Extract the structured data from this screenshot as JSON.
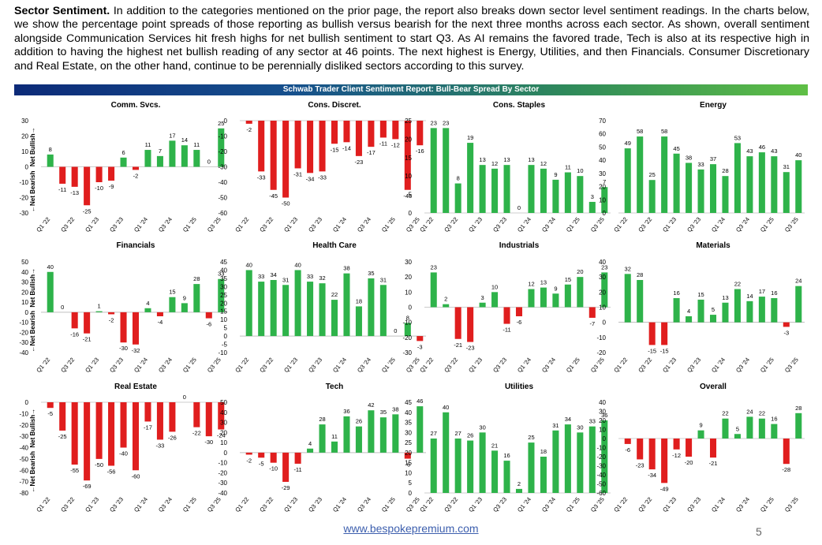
{
  "intro": {
    "heading": "Sector Sentiment.",
    "body": " In addition to the categories mentioned on the prior page, the report also breaks down sector level sentiment readings. In the charts below, we show the percentage point spreads of those reporting as bullish versus bearish for the next three months across each sector.  As shown, overall sentiment alongside Communication Services hit fresh highs for net bullish sentiment to start Q3.  As AI remains the favored trade, Tech is also at its respective high in addition to having the highest net bullish reading of any sector at 46 points. The next highest is Energy, Utilities, and then Financials. Consumer Discretionary and Real Estate, on the other hand, continue to be perennially disliked sectors according to this survey."
  },
  "banner_title": "Schwab Trader Client Sentiment Report: Bull-Bear Spread By Sector",
  "y_axis": {
    "top_label": "Net Bullish→",
    "bottom_label": "←Net Bearish"
  },
  "x_tick_labels": [
    "Q1 '22",
    "Q3 '22",
    "Q1 '23",
    "Q3 '23",
    "Q1 '24",
    "Q3 '24",
    "Q1 '25",
    "Q3 '25"
  ],
  "colors": {
    "positive": "#2eb34a",
    "negative": "#e01e1e"
  },
  "footer": {
    "url": "www.bespokepremium.com",
    "page": "5"
  },
  "chart_data": [
    {
      "type": "bar",
      "title": "Comm. Svcs.",
      "categories": [
        "Q1 '22",
        "Q2 '22",
        "Q3 '22",
        "Q4 '22",
        "Q1 '23",
        "Q2 '23",
        "Q3 '23",
        "Q4 '23",
        "Q1 '24",
        "Q2 '24",
        "Q3 '24",
        "Q4 '24",
        "Q1 '25",
        "Q2 '25",
        "Q3 '25"
      ],
      "values": [
        8,
        -11,
        -13,
        -25,
        -10,
        -9,
        6,
        -2,
        11,
        7,
        17,
        14,
        11,
        0,
        25
      ],
      "ylim": [
        -30,
        30
      ],
      "yticks": [
        30,
        20,
        10,
        0,
        -10,
        -20,
        -30
      ]
    },
    {
      "type": "bar",
      "title": "Cons. Discret.",
      "categories": [
        "Q1 '22",
        "Q2 '22",
        "Q3 '22",
        "Q4 '22",
        "Q1 '23",
        "Q2 '23",
        "Q3 '23",
        "Q4 '23",
        "Q1 '24",
        "Q2 '24",
        "Q3 '24",
        "Q4 '24",
        "Q1 '25",
        "Q2 '25",
        "Q3 '25"
      ],
      "values": [
        -2,
        -33,
        -45,
        -50,
        -31,
        -34,
        -33,
        -15,
        -14,
        -23,
        -17,
        -11,
        -12,
        -45,
        -16
      ],
      "ylim": [
        -60,
        0
      ],
      "yticks": [
        0,
        -10,
        -20,
        -30,
        -40,
        -50,
        -60
      ]
    },
    {
      "type": "bar",
      "title": "Cons. Staples",
      "categories": [
        "Q1 '22",
        "Q2 '22",
        "Q3 '22",
        "Q4 '22",
        "Q1 '23",
        "Q2 '23",
        "Q3 '23",
        "Q4 '23",
        "Q1 '24",
        "Q2 '24",
        "Q3 '24",
        "Q4 '24",
        "Q1 '25",
        "Q2 '25",
        "Q3 '25"
      ],
      "values": [
        23,
        23,
        8,
        19,
        13,
        12,
        13,
        0,
        13,
        12,
        9,
        11,
        10,
        3,
        7
      ],
      "ylim": [
        0,
        25
      ],
      "yticks": [
        25,
        20,
        15,
        10,
        5,
        0
      ]
    },
    {
      "type": "bar",
      "title": "Energy",
      "categories": [
        "Q1 '22",
        "Q2 '22",
        "Q3 '22",
        "Q4 '22",
        "Q1 '23",
        "Q2 '23",
        "Q3 '23",
        "Q4 '23",
        "Q1 '24",
        "Q2 '24",
        "Q3 '24",
        "Q4 '24",
        "Q1 '25",
        "Q2 '25",
        "Q3 '25"
      ],
      "values": [
        49,
        58,
        25,
        58,
        45,
        38,
        33,
        37,
        28,
        53,
        43,
        46,
        43,
        31,
        40
      ],
      "ylim": [
        0,
        70
      ],
      "yticks": [
        70,
        60,
        50,
        40,
        30,
        20,
        10,
        0
      ]
    },
    {
      "type": "bar",
      "title": "Financials",
      "categories": [
        "Q1 '22",
        "Q2 '22",
        "Q3 '22",
        "Q4 '22",
        "Q1 '23",
        "Q2 '23",
        "Q3 '23",
        "Q4 '23",
        "Q1 '24",
        "Q2 '24",
        "Q3 '24",
        "Q4 '24",
        "Q1 '25",
        "Q2 '25",
        "Q3 '25"
      ],
      "values": [
        40,
        0,
        -16,
        -21,
        1,
        -2,
        -30,
        -32,
        4,
        -4,
        15,
        9,
        28,
        -6,
        33
      ],
      "ylim": [
        -40,
        50
      ],
      "yticks": [
        50,
        40,
        30,
        20,
        10,
        0,
        -10,
        -20,
        -30,
        -40
      ]
    },
    {
      "type": "bar",
      "title": "Health Care",
      "categories": [
        "Q1 '22",
        "Q2 '22",
        "Q3 '22",
        "Q4 '22",
        "Q1 '23",
        "Q2 '23",
        "Q3 '23",
        "Q4 '23",
        "Q1 '24",
        "Q2 '24",
        "Q3 '24",
        "Q4 '24",
        "Q1 '25",
        "Q2 '25",
        "Q3 '25"
      ],
      "values": [
        40,
        33,
        34,
        31,
        40,
        33,
        32,
        22,
        38,
        18,
        35,
        31,
        0,
        8,
        -3
      ],
      "ylim": [
        -10,
        45
      ],
      "yticks": [
        45,
        40,
        35,
        30,
        25,
        20,
        15,
        10,
        5,
        0,
        -5,
        -10
      ]
    },
    {
      "type": "bar",
      "title": "Industrials",
      "categories": [
        "Q1 '22",
        "Q2 '22",
        "Q3 '22",
        "Q4 '22",
        "Q1 '23",
        "Q2 '23",
        "Q3 '23",
        "Q4 '23",
        "Q1 '24",
        "Q2 '24",
        "Q3 '24",
        "Q4 '24",
        "Q1 '25",
        "Q2 '25",
        "Q3 '25"
      ],
      "values": [
        23,
        2,
        -21,
        -23,
        3,
        10,
        -11,
        -6,
        12,
        13,
        9,
        15,
        20,
        -7,
        23
      ],
      "ylim": [
        -30,
        30
      ],
      "yticks": [
        30,
        20,
        10,
        0,
        -10,
        -20,
        -30
      ]
    },
    {
      "type": "bar",
      "title": "Materials",
      "categories": [
        "Q1 '22",
        "Q2 '22",
        "Q3 '22",
        "Q4 '22",
        "Q1 '23",
        "Q2 '23",
        "Q3 '23",
        "Q4 '23",
        "Q1 '24",
        "Q2 '24",
        "Q3 '24",
        "Q4 '24",
        "Q1 '25",
        "Q2 '25",
        "Q3 '25"
      ],
      "values": [
        32,
        28,
        -15,
        -15,
        16,
        4,
        15,
        5,
        13,
        22,
        14,
        17,
        16,
        -3,
        24
      ],
      "ylim": [
        -20,
        40
      ],
      "yticks": [
        40,
        30,
        20,
        10,
        0,
        -10,
        -20
      ]
    },
    {
      "type": "bar",
      "title": "Real Estate",
      "categories": [
        "Q1 '22",
        "Q2 '22",
        "Q3 '22",
        "Q4 '22",
        "Q1 '23",
        "Q2 '23",
        "Q3 '23",
        "Q4 '23",
        "Q1 '24",
        "Q2 '24",
        "Q3 '24",
        "Q4 '24",
        "Q1 '25",
        "Q2 '25",
        "Q3 '25"
      ],
      "values": [
        -5,
        -25,
        -55,
        -69,
        -50,
        -56,
        -40,
        -60,
        -17,
        -33,
        -26,
        0,
        -22,
        -30,
        -24
      ],
      "ylim": [
        -80,
        0
      ],
      "yticks": [
        0,
        -10,
        -20,
        -30,
        -40,
        -50,
        -60,
        -70,
        -80
      ]
    },
    {
      "type": "bar",
      "title": "Tech",
      "categories": [
        "Q1 '22",
        "Q2 '22",
        "Q3 '22",
        "Q4 '22",
        "Q1 '23",
        "Q2 '23",
        "Q3 '23",
        "Q4 '23",
        "Q1 '24",
        "Q2 '24",
        "Q3 '24",
        "Q4 '24",
        "Q1 '25",
        "Q2 '25",
        "Q3 '25"
      ],
      "values": [
        -2,
        -5,
        -10,
        -29,
        -11,
        4,
        28,
        11,
        36,
        26,
        42,
        35,
        38,
        -6,
        46
      ],
      "ylim": [
        -40,
        50
      ],
      "yticks": [
        50,
        40,
        30,
        20,
        10,
        0,
        -10,
        -20,
        -30,
        -40
      ]
    },
    {
      "type": "bar",
      "title": "Utilities",
      "categories": [
        "Q1 '22",
        "Q2 '22",
        "Q3 '22",
        "Q4 '22",
        "Q1 '23",
        "Q2 '23",
        "Q3 '23",
        "Q4 '23",
        "Q1 '24",
        "Q2 '24",
        "Q3 '24",
        "Q4 '24",
        "Q1 '25",
        "Q2 '25",
        "Q3 '25"
      ],
      "values": [
        27,
        40,
        27,
        26,
        30,
        21,
        16,
        2,
        25,
        18,
        31,
        34,
        30,
        33,
        36
      ],
      "ylim": [
        0,
        45
      ],
      "yticks": [
        45,
        40,
        35,
        30,
        25,
        20,
        15,
        10,
        5,
        0
      ]
    },
    {
      "type": "bar",
      "title": "Overall",
      "categories": [
        "Q1 '22",
        "Q2 '22",
        "Q3 '22",
        "Q4 '22",
        "Q1 '23",
        "Q2 '23",
        "Q3 '23",
        "Q4 '23",
        "Q1 '24",
        "Q2 '24",
        "Q3 '24",
        "Q4 '24",
        "Q1 '25",
        "Q2 '25",
        "Q3 '25"
      ],
      "values": [
        -6,
        -23,
        -34,
        -49,
        -12,
        -20,
        9,
        -21,
        22,
        5,
        24,
        22,
        16,
        -28,
        28
      ],
      "ylim": [
        -60,
        40
      ],
      "yticks": [
        40,
        30,
        20,
        10,
        0,
        -10,
        -20,
        -30,
        -40,
        -50,
        -60
      ]
    }
  ]
}
